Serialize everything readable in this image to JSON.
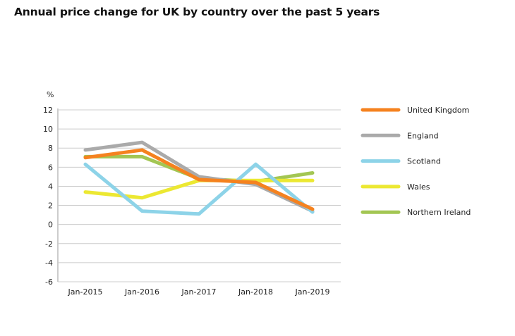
{
  "chart_data": {
    "type": "line",
    "title": "Annual price change for UK by country over the past 5 years",
    "ylabel": "%",
    "xlabel": "",
    "categories": [
      "Jan-2015",
      "Jan-2016",
      "Jan-2017",
      "Jan-2018",
      "Jan-2019"
    ],
    "ylim": [
      -6,
      12
    ],
    "yticks": [
      12,
      10,
      8,
      6,
      4,
      2,
      0,
      -2,
      -4,
      -6
    ],
    "grid": true,
    "legend": "right",
    "series": [
      {
        "name": "United Kingdom",
        "color": "#f5821f",
        "values": [
          7.0,
          7.8,
          4.7,
          4.4,
          1.6
        ]
      },
      {
        "name": "England",
        "color": "#aaaaaa",
        "values": [
          7.8,
          8.6,
          5.0,
          4.2,
          1.4
        ]
      },
      {
        "name": "Scotland",
        "color": "#8dd3e8",
        "values": [
          6.3,
          1.4,
          1.1,
          6.3,
          1.3
        ]
      },
      {
        "name": "Wales",
        "color": "#ece832",
        "values": [
          3.4,
          2.8,
          4.6,
          4.6,
          4.6
        ]
      },
      {
        "name": "Northern Ireland",
        "color": "#a3c653",
        "values": [
          7.1,
          7.1,
          4.8,
          4.5,
          5.4
        ]
      }
    ]
  }
}
